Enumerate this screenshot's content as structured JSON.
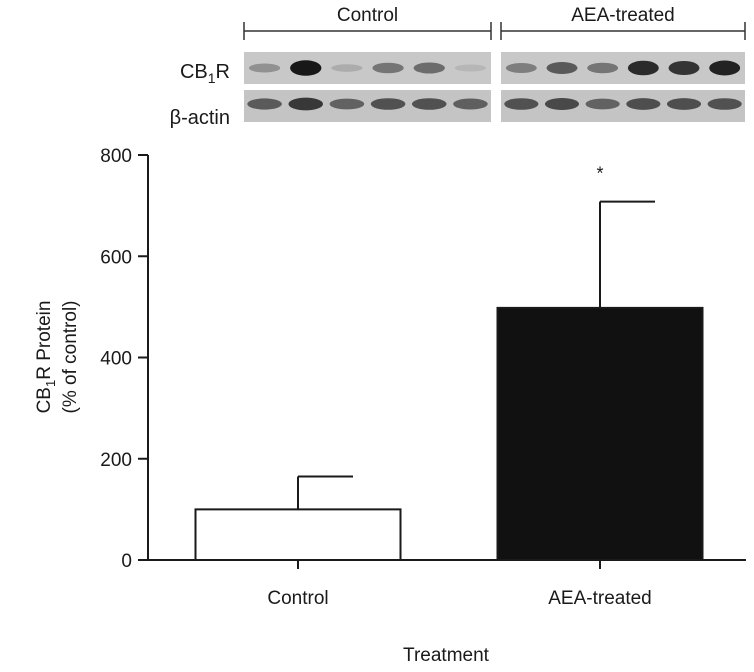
{
  "blot": {
    "groups": [
      {
        "label": "Control",
        "bands": {
          "target": [
            0.3,
            0.95,
            0.15,
            0.45,
            0.5,
            0.1
          ],
          "loading": [
            0.65,
            0.85,
            0.6,
            0.7,
            0.7,
            0.62
          ]
        }
      },
      {
        "label": "AEA-treated",
        "bands": {
          "target": [
            0.4,
            0.6,
            0.45,
            0.85,
            0.8,
            0.9
          ],
          "loading": [
            0.7,
            0.75,
            0.6,
            0.72,
            0.72,
            0.7
          ]
        }
      }
    ],
    "row_labels": {
      "target_main": "CB",
      "target_sub": "1",
      "target_suffix": "R",
      "loading": "β-actin"
    }
  },
  "chart_data": {
    "type": "bar",
    "categories": [
      "Control",
      "AEA-treated"
    ],
    "values": [
      100,
      498
    ],
    "error_upper": [
      165,
      708
    ],
    "bar_colors": [
      "#ffffff",
      "#111111"
    ],
    "annotations": [
      {
        "category": "AEA-treated",
        "text": "*"
      }
    ],
    "title": "",
    "xlabel": "Treatment",
    "ylabel_line1_main": "CB",
    "ylabel_line1_sub": "1",
    "ylabel_line1_suffix": "R  Protein",
    "ylabel_line2": "(% of control)",
    "ylim": [
      0,
      800
    ],
    "yticks": [
      0,
      200,
      400,
      600,
      800
    ],
    "grid": false,
    "legend": "none"
  }
}
